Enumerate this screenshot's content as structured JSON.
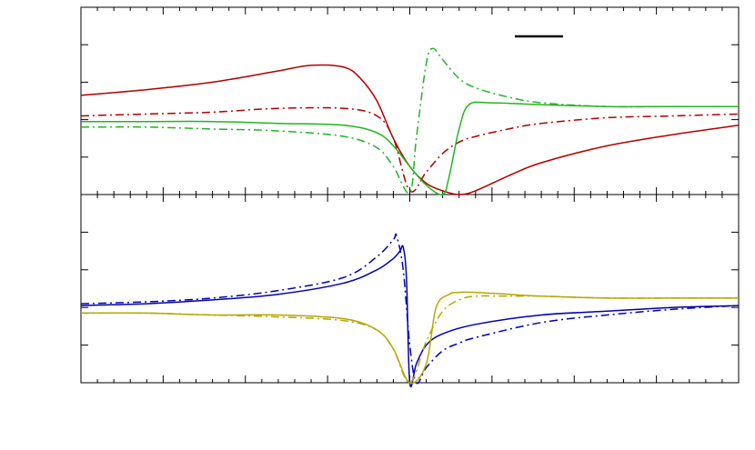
{
  "chart_data": [
    {
      "type": "line",
      "panel": "top",
      "xlim": [
        -1,
        1
      ],
      "ylim": [
        0,
        1
      ],
      "grid": false,
      "legend": {
        "position": "top-right",
        "entries": [
          {
            "label": "",
            "color": "#000000",
            "dash": "solid"
          }
        ]
      },
      "series": [
        {
          "color": "#b00000",
          "dash": "solid",
          "x": [
            -1.0,
            -0.8,
            -0.6,
            -0.4,
            -0.3,
            -0.2,
            -0.15,
            -0.1,
            -0.05,
            0.0,
            0.05,
            0.1,
            0.15,
            0.2,
            0.3,
            0.4,
            0.6,
            0.8,
            1.0
          ],
          "y": [
            0.53,
            0.56,
            0.6,
            0.66,
            0.69,
            0.68,
            0.62,
            0.5,
            0.3,
            0.15,
            0.06,
            0.02,
            0.0,
            0.02,
            0.1,
            0.17,
            0.26,
            0.32,
            0.37
          ]
        },
        {
          "color": "#b00000",
          "dash": "dashdot",
          "x": [
            -1.0,
            -0.8,
            -0.6,
            -0.4,
            -0.2,
            -0.1,
            -0.05,
            0.0,
            0.05,
            0.1,
            0.15,
            0.2,
            0.3,
            0.4,
            0.6,
            0.8,
            1.0
          ],
          "y": [
            0.42,
            0.43,
            0.44,
            0.46,
            0.46,
            0.42,
            0.3,
            0.02,
            0.12,
            0.22,
            0.28,
            0.31,
            0.35,
            0.38,
            0.41,
            0.42,
            0.43
          ]
        },
        {
          "color": "#22b422",
          "dash": "solid",
          "x": [
            -1.0,
            -0.8,
            -0.6,
            -0.4,
            -0.2,
            -0.1,
            -0.05,
            0.0,
            0.05,
            0.1,
            0.12,
            0.15,
            0.18,
            0.25,
            0.4,
            0.6,
            0.8,
            1.0
          ],
          "y": [
            0.39,
            0.39,
            0.39,
            0.38,
            0.37,
            0.33,
            0.26,
            0.15,
            0.05,
            0.0,
            0.1,
            0.35,
            0.48,
            0.49,
            0.48,
            0.47,
            0.47,
            0.47
          ]
        },
        {
          "color": "#22b422",
          "dash": "dashdot",
          "x": [
            -1.0,
            -0.8,
            -0.6,
            -0.4,
            -0.2,
            -0.1,
            -0.05,
            0.0,
            0.02,
            0.05,
            0.07,
            0.1,
            0.15,
            0.2,
            0.3,
            0.4,
            0.6,
            0.8,
            1.0
          ],
          "y": [
            0.36,
            0.36,
            0.35,
            0.34,
            0.31,
            0.25,
            0.15,
            0.01,
            0.3,
            0.7,
            0.78,
            0.72,
            0.62,
            0.57,
            0.52,
            0.49,
            0.47,
            0.47,
            0.47
          ]
        }
      ]
    },
    {
      "type": "line",
      "panel": "bottom",
      "xlim": [
        -1,
        1
      ],
      "ylim": [
        0,
        1
      ],
      "grid": false,
      "series": [
        {
          "color": "#0000b0",
          "dash": "solid",
          "x": [
            -1.0,
            -0.8,
            -0.6,
            -0.4,
            -0.2,
            -0.1,
            -0.05,
            -0.03,
            -0.02,
            -0.01,
            0.0,
            0.02,
            0.05,
            0.1,
            0.2,
            0.4,
            0.6,
            0.8,
            1.0
          ],
          "y": [
            0.41,
            0.42,
            0.44,
            0.47,
            0.53,
            0.6,
            0.66,
            0.7,
            0.72,
            0.55,
            0.0,
            0.1,
            0.2,
            0.26,
            0.31,
            0.36,
            0.38,
            0.4,
            0.41
          ]
        },
        {
          "color": "#0000b0",
          "dash": "dashdot",
          "x": [
            -1.0,
            -0.8,
            -0.6,
            -0.4,
            -0.2,
            -0.1,
            -0.05,
            -0.04,
            -0.02,
            0.0,
            0.02,
            0.05,
            0.1,
            0.15,
            0.2,
            0.4,
            0.6,
            0.8,
            1.0
          ],
          "y": [
            0.42,
            0.43,
            0.45,
            0.49,
            0.56,
            0.67,
            0.76,
            0.78,
            0.6,
            0.2,
            0.0,
            0.08,
            0.17,
            0.21,
            0.24,
            0.32,
            0.36,
            0.39,
            0.41
          ]
        },
        {
          "color": "#b4a800",
          "dash": "solid",
          "x": [
            -1.0,
            -0.8,
            -0.6,
            -0.4,
            -0.2,
            -0.1,
            -0.05,
            0.0,
            0.05,
            0.08,
            0.12,
            0.15,
            0.2,
            0.3,
            0.4,
            0.6,
            0.8,
            1.0
          ],
          "y": [
            0.37,
            0.37,
            0.36,
            0.36,
            0.34,
            0.28,
            0.18,
            0.0,
            0.1,
            0.4,
            0.47,
            0.48,
            0.48,
            0.47,
            0.46,
            0.45,
            0.45,
            0.45
          ]
        },
        {
          "color": "#b4a800",
          "dash": "dashdot",
          "x": [
            -1.0,
            -0.8,
            -0.6,
            -0.4,
            -0.2,
            -0.1,
            -0.05,
            0.0,
            0.05,
            0.1,
            0.15,
            0.2,
            0.3,
            0.4,
            0.6,
            0.8,
            1.0
          ],
          "y": [
            0.37,
            0.37,
            0.36,
            0.35,
            0.33,
            0.28,
            0.18,
            0.0,
            0.22,
            0.38,
            0.44,
            0.46,
            0.46,
            0.46,
            0.45,
            0.45,
            0.45
          ]
        }
      ]
    }
  ]
}
